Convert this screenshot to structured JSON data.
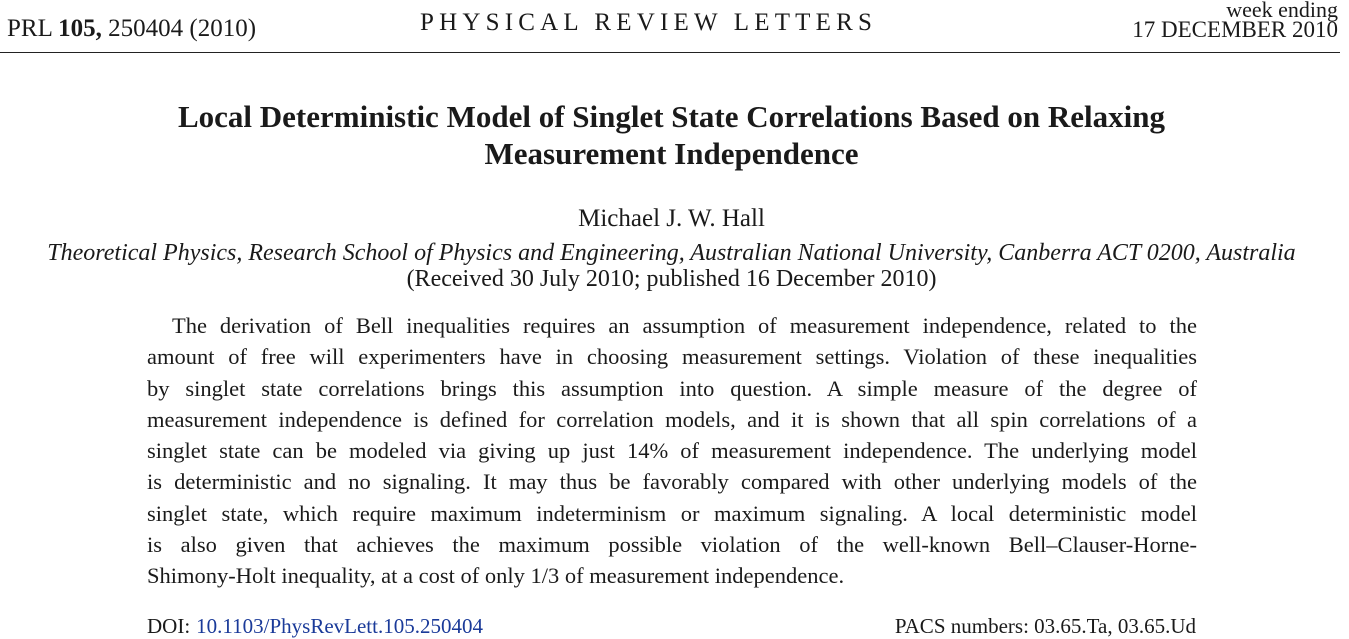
{
  "header": {
    "journal_prefix": "PRL",
    "volume": "105,",
    "article_and_year": "250404 (2010)",
    "journal_name": "PHYSICAL REVIEW LETTERS",
    "week_ending_label": "week ending",
    "week_ending_date": "17 DECEMBER 2010"
  },
  "article": {
    "title_line_1": "Local Deterministic Model of Singlet State Correlations Based on Relaxing",
    "title_line_2": "Measurement Independence",
    "author": "Michael J. W. Hall",
    "affiliation": "Theoretical Physics, Research School of Physics and Engineering, Australian National University, Canberra ACT 0200, Australia",
    "received": "(Received 30 July 2010; published 16 December 2010)"
  },
  "abstract": {
    "lines": [
      "The derivation of Bell inequalities requires an assumption of measurement independence, related to the",
      "amount of free will experimenters have in choosing measurement settings. Violation of these inequalities",
      "by singlet state correlations brings this assumption into question. A simple measure of the degree of",
      "measurement independence is defined for correlation models, and it is shown that all spin correlations of a",
      "singlet state can be modeled via giving up just 14% of measurement independence. The underlying model",
      "is deterministic and no signaling. It may thus be favorably compared with other underlying models of the",
      "singlet state, which require maximum indeterminism or maximum signaling. A local deterministic model",
      "is also given that achieves the maximum possible violation of the well-known Bell–Clauser-Horne-",
      "Shimony-Holt inequality, at a cost of only 1/3 of measurement independence."
    ]
  },
  "footer": {
    "doi_label": "DOI:",
    "doi_link": "10.1103/PhysRevLett.105.250404",
    "pacs": "PACS numbers: 03.65.Ta, 03.65.Ud",
    "link_color": "#1a3a99"
  }
}
